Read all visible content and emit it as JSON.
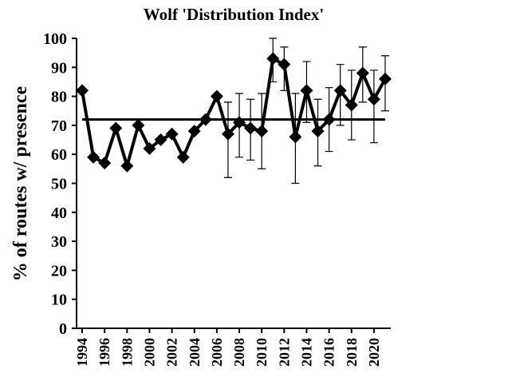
{
  "chart_data": {
    "type": "line",
    "title": "Wolf 'Distribution Index'",
    "y_label": "% of routes w/ presence",
    "x": [
      1994,
      1995,
      1996,
      1997,
      1998,
      1999,
      2000,
      2001,
      2002,
      2003,
      2004,
      2005,
      2006,
      2007,
      2008,
      2009,
      2010,
      2011,
      2012,
      2013,
      2014,
      2015,
      2016,
      2017,
      2018,
      2019,
      2020,
      2021
    ],
    "values": [
      82,
      59,
      57,
      69,
      56,
      70,
      62,
      65,
      67,
      59,
      68,
      72,
      80,
      67,
      71,
      69,
      68,
      93,
      91,
      66,
      82,
      68,
      72,
      82,
      77,
      88,
      79,
      86
    ],
    "err_low": [
      null,
      null,
      null,
      null,
      null,
      null,
      null,
      null,
      null,
      null,
      null,
      null,
      null,
      52,
      59,
      58,
      55,
      85,
      82,
      50,
      71,
      56,
      61,
      70,
      65,
      78,
      64,
      75
    ],
    "err_high": [
      null,
      null,
      null,
      null,
      null,
      null,
      null,
      null,
      null,
      null,
      null,
      null,
      null,
      78,
      81,
      79,
      81,
      100,
      97,
      81,
      92,
      79,
      83,
      91,
      89,
      97,
      89,
      94
    ],
    "color": "#000000",
    "reference_line": 72,
    "xlim": [
      1993.5,
      2021.5
    ],
    "xticks": [
      1994,
      1996,
      1998,
      2000,
      2002,
      2004,
      2006,
      2008,
      2010,
      2012,
      2014,
      2016,
      2018,
      2020
    ],
    "ylim": [
      0,
      100
    ],
    "yticks": [
      0,
      10,
      20,
      30,
      40,
      50,
      60,
      70,
      80,
      90,
      100
    ]
  }
}
